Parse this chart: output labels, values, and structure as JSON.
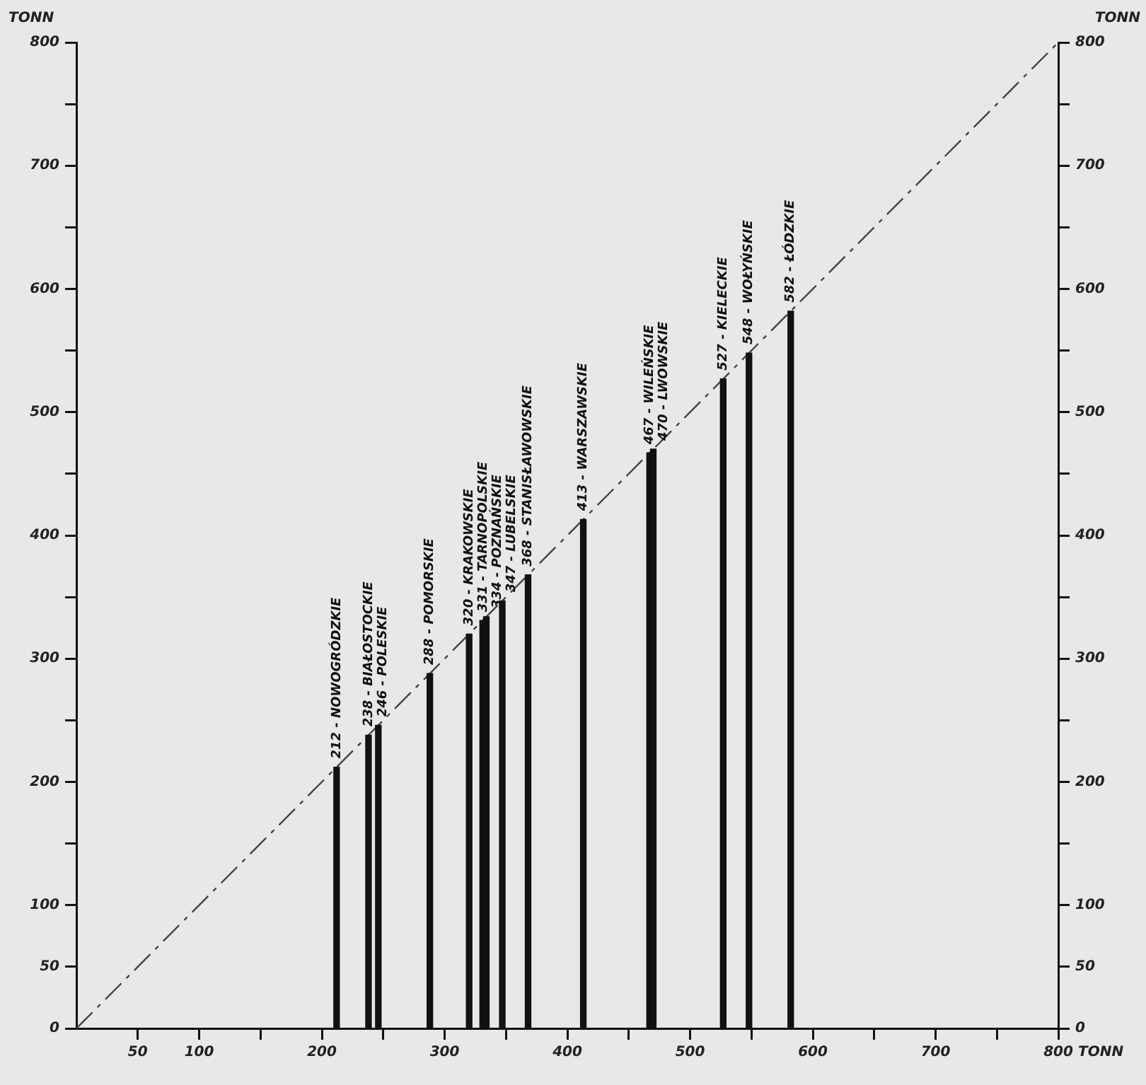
{
  "chart_data": {
    "type": "bar",
    "xlabel": "TONN",
    "ylabel": "TONN",
    "y2label": "TONN",
    "xlim": [
      0,
      800
    ],
    "xticks": [
      50,
      100,
      {
        "value": 150,
        "label": null
      },
      200,
      {
        "value": 250,
        "label": null
      },
      300,
      {
        "value": 350,
        "label": null
      },
      400,
      {
        "value": 450,
        "label": null
      },
      500,
      {
        "value": 550,
        "label": null
      },
      600,
      {
        "value": 650,
        "label": null
      },
      700,
      {
        "value": 750,
        "label": null
      },
      800
    ],
    "ylim": [
      0,
      800
    ],
    "yticks": [
      0,
      50,
      100,
      {
        "value": 150,
        "label": null
      },
      200,
      {
        "value": 250,
        "label": null
      },
      300,
      {
        "value": 350,
        "label": null
      },
      400,
      {
        "value": 450,
        "label": null
      },
      500,
      {
        "value": 550,
        "label": null
      },
      600,
      {
        "value": 650,
        "label": null
      },
      700,
      {
        "value": 750,
        "label": null
      },
      800
    ],
    "y2lim": [
      0,
      800
    ],
    "y2ticks": [
      0,
      50,
      100,
      {
        "value": 150,
        "label": null
      },
      200,
      {
        "value": 250,
        "label": null
      },
      300,
      {
        "value": 350,
        "label": null
      },
      400,
      {
        "value": 450,
        "label": null
      },
      500,
      {
        "value": 550,
        "label": null
      },
      600,
      {
        "value": 650,
        "label": null
      },
      700,
      {
        "value": 750,
        "label": null
      },
      800
    ],
    "grid": false,
    "legend": false,
    "series": [
      {
        "color": "#111111",
        "x": [
          212,
          238,
          246,
          288,
          320,
          331,
          334,
          347,
          368,
          413,
          467,
          470,
          527,
          548,
          582
        ],
        "values": [
          212,
          238,
          246,
          288,
          320,
          331,
          334,
          347,
          368,
          413,
          467,
          470,
          527,
          548,
          582
        ],
        "value_labels": [
          "212 - NOWOGRÓDZKIE",
          "238 - BIAŁOSTOCKIE",
          "246 - POLESKIE",
          "288 - POMORSKIE",
          "320 - KRAKOWSKIE",
          "331 - TARNOPOLSKIE",
          "334 - POZNAŃSKIE",
          "347 - LUBELSKIE",
          "368 - STANISŁAWOWSKIE",
          "413 - WARSZAWSKIE",
          "467 - WILEŃSKIE",
          "470 - LWOWSKIE",
          "527 - KIELECKIE",
          "548 - WOŁYŃSKIE",
          "582 - ŁÓDZKIE"
        ]
      },
      {
        "type": "line",
        "color": "#444444",
        "x": [
          0,
          800
        ],
        "values": [
          0,
          800
        ],
        "line_style": "dashed",
        "marker": "none"
      }
    ]
  }
}
